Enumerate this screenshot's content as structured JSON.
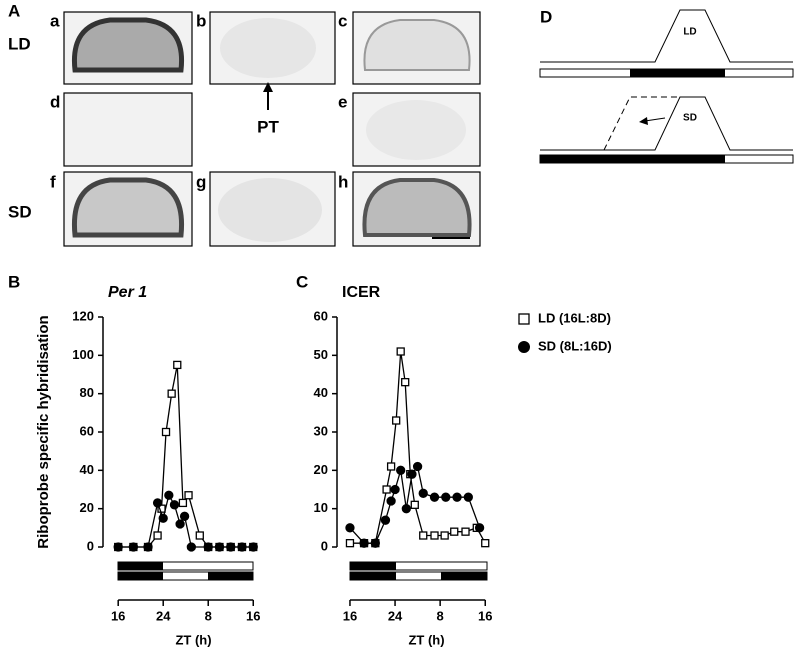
{
  "panel_a": {
    "label": "A",
    "rows": [
      "LD",
      "SD"
    ],
    "sections": [
      "a",
      "b",
      "c",
      "d",
      "e",
      "f",
      "g",
      "h"
    ],
    "arrow_label": "PT"
  },
  "panel_d": {
    "label": "D",
    "curves": [
      "LD",
      "SD"
    ]
  },
  "chart_data": [
    {
      "type": "line",
      "panel": "B",
      "title": "Per 1",
      "ylabel": "Riboprobe specific hybridisation",
      "xlabel": "ZT (h)",
      "xlim": [
        13.3,
        41.2
      ],
      "xticks": [
        16,
        24,
        {
          "value": 32,
          "label": "8"
        },
        {
          "value": 40,
          "label": "16"
        }
      ],
      "ylim": [
        0,
        120
      ],
      "yticks": [
        0,
        20,
        40,
        60,
        80,
        100,
        120
      ],
      "series": [
        {
          "color": "#000000",
          "marker": "square",
          "x": [
            16,
            18.7,
            21.3,
            23,
            23.7,
            24.5,
            25.5,
            26.5,
            27.5,
            28.5,
            30.5,
            32,
            34,
            36,
            38,
            40
          ],
          "values": [
            0,
            0,
            0,
            6,
            20,
            60,
            80,
            95,
            23,
            27,
            6,
            0,
            0,
            0,
            0,
            0
          ]
        },
        {
          "color": "#000000",
          "marker": "circle",
          "x": [
            16,
            18.7,
            21.3,
            23,
            24,
            25,
            26,
            27,
            27.8,
            29,
            32,
            34,
            36,
            38,
            40
          ],
          "values": [
            0,
            0,
            0,
            23,
            15,
            27,
            22,
            12,
            16,
            0,
            0,
            0,
            0,
            0,
            0
          ]
        }
      ]
    },
    {
      "type": "line",
      "panel": "C",
      "title": "ICER",
      "xlabel": "ZT (h)",
      "xlim": [
        13.7,
        41.2
      ],
      "xticks": [
        16,
        24,
        {
          "value": 32,
          "label": "8"
        },
        {
          "value": 40,
          "label": "16"
        }
      ],
      "ylim": [
        0,
        60
      ],
      "yticks": [
        0,
        10,
        20,
        30,
        40,
        50,
        60
      ],
      "legend": true,
      "series": [
        {
          "name": "LD (16L:8D)",
          "color": "#000000",
          "marker": "square",
          "x": [
            16,
            18.5,
            20.5,
            22.5,
            23.3,
            24.2,
            25,
            25.8,
            26.7,
            27.5,
            29,
            31,
            32.8,
            34.5,
            36.5,
            38.5,
            40
          ],
          "values": [
            1,
            1,
            1,
            15,
            21,
            33,
            51,
            43,
            19,
            11,
            3,
            3,
            3,
            4,
            4,
            5,
            1
          ]
        },
        {
          "name": "SD (8L:16D)",
          "color": "#000000",
          "marker": "circle",
          "x": [
            16,
            18.5,
            20.5,
            22.3,
            23.3,
            24,
            25,
            26,
            27,
            28,
            29,
            31,
            33,
            35,
            37,
            39
          ],
          "values": [
            5,
            1,
            1,
            7,
            12,
            15,
            20,
            10,
            19,
            21,
            14,
            13,
            13,
            13,
            13,
            5
          ]
        }
      ]
    }
  ]
}
